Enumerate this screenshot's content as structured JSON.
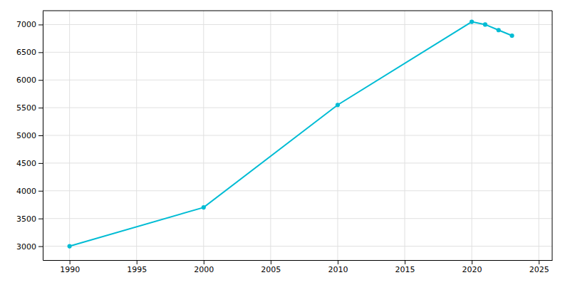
{
  "chart_data": {
    "type": "line",
    "x": [
      1990,
      2000,
      2010,
      2020,
      2021,
      2022,
      2023
    ],
    "values": [
      3000,
      3700,
      5550,
      7050,
      7000,
      6900,
      6800
    ],
    "color": "#00BCD4",
    "marker": "circle",
    "xlim": [
      1988,
      2026
    ],
    "ylim": [
      2750,
      7250
    ],
    "xticks": [
      1990,
      1995,
      2000,
      2005,
      2010,
      2015,
      2020,
      2025
    ],
    "yticks": [
      3000,
      3500,
      4000,
      4500,
      5000,
      5500,
      6000,
      6500,
      7000
    ],
    "grid": true
  }
}
